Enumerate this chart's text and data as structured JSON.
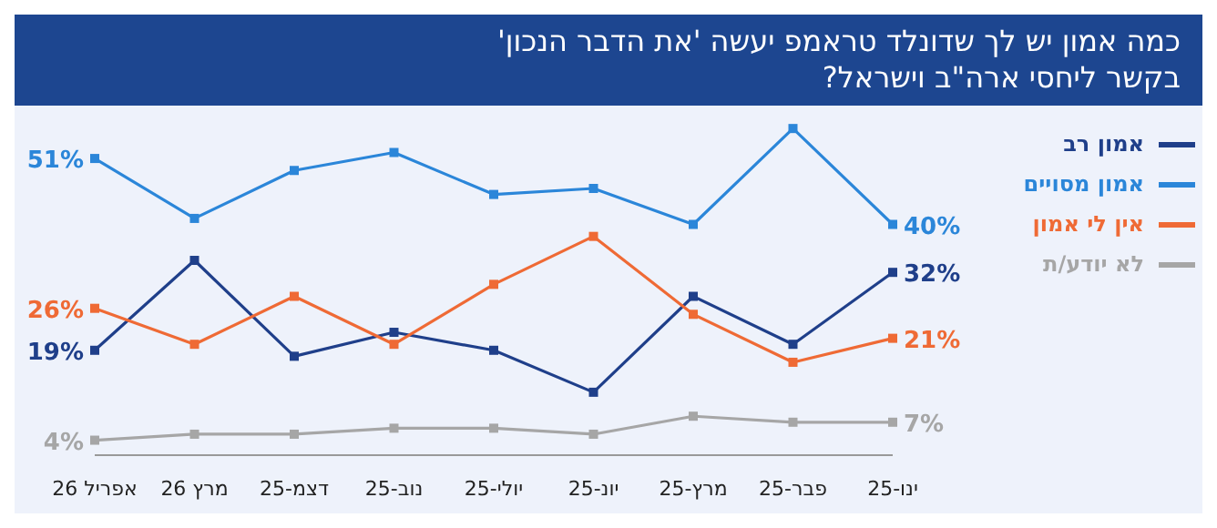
{
  "chart_data": {
    "type": "line",
    "title": "כמה אמון יש לך שדונלד טראמפ יעשה 'את הדבר הנכון' בקשר ליחסי ארה\"ב וישראל?",
    "categories": [
      "אפריל 26",
      "מרץ 26",
      "דצמ-25",
      "נוב-25",
      "יולי-25",
      "יונ-25",
      "מרץ-25",
      "פבר-25",
      "ינו-25"
    ],
    "series": [
      {
        "name": "אמון רב",
        "color": "#1f3f8a",
        "values": [
          19,
          34,
          18,
          22,
          19,
          12,
          28,
          20,
          32
        ],
        "value_labels": [
          "19%",
          null,
          null,
          null,
          null,
          null,
          null,
          null,
          "32%"
        ]
      },
      {
        "name": "אמון מסויים",
        "color": "#2b86d9",
        "values": [
          51,
          41,
          49,
          52,
          45,
          46,
          40,
          56,
          40
        ],
        "value_labels": [
          "51%",
          null,
          null,
          null,
          null,
          null,
          null,
          null,
          "40%"
        ]
      },
      {
        "name": "אין לי אמון",
        "color": "#ef6a35",
        "values": [
          26,
          20,
          28,
          20,
          30,
          38,
          25,
          17,
          21
        ],
        "value_labels": [
          "26%",
          null,
          null,
          null,
          null,
          null,
          null,
          null,
          "21%"
        ]
      },
      {
        "name": "לא יודע/ת",
        "color": "#a6a6a6",
        "values": [
          4,
          5,
          5,
          6,
          6,
          5,
          8,
          7,
          7
        ],
        "value_labels": [
          "4%",
          null,
          null,
          null,
          null,
          null,
          null,
          null,
          "7%"
        ]
      }
    ],
    "marker": "square",
    "legend": "right",
    "grid": false
  }
}
